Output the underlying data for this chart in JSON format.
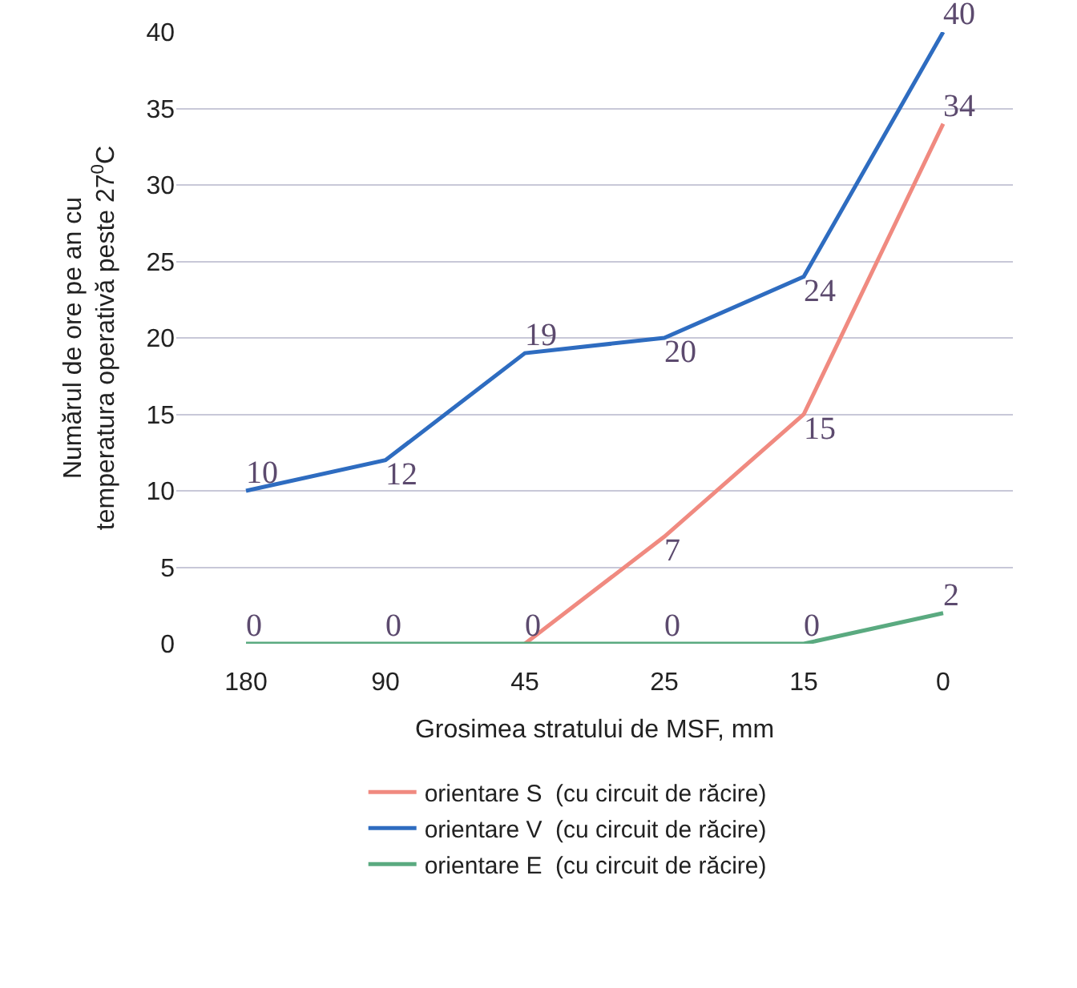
{
  "chart_data": {
    "type": "line",
    "xlabel": "Grosimea stratului de MSF, mm",
    "ylabel": "Numărul de ore pe an cu\ntemperatura operativă peste 27$^{0}$C",
    "categories": [
      "180",
      "90",
      "45",
      "25",
      "15",
      "0"
    ],
    "series": [
      {
        "name": "orientare S  (cu circuit de răcire)",
        "color": "#f08a80",
        "values": [
          null,
          null,
          0,
          7,
          15,
          34
        ],
        "value_labels": [
          null,
          null,
          null,
          "7",
          "15",
          "34"
        ]
      },
      {
        "name": "orientare V  (cu circuit de răcire)",
        "color": "#2e6cc0",
        "values": [
          10,
          12,
          19,
          20,
          24,
          40
        ],
        "value_labels": [
          "10",
          "12",
          "19",
          "20",
          "24",
          "40"
        ]
      },
      {
        "name": "orientare E  (cu circuit de răcire)",
        "color": "#5aaa80",
        "values": [
          0,
          0,
          0,
          0,
          0,
          2
        ],
        "value_labels": [
          "0",
          "0",
          "0",
          "0",
          "0",
          "2"
        ]
      }
    ],
    "ylim": [
      0,
      40
    ],
    "yticks": [
      0,
      5,
      10,
      15,
      20,
      25,
      30,
      35,
      40
    ],
    "grid": "y",
    "legend": "bottom",
    "marker": "none",
    "line_style": "solid"
  }
}
